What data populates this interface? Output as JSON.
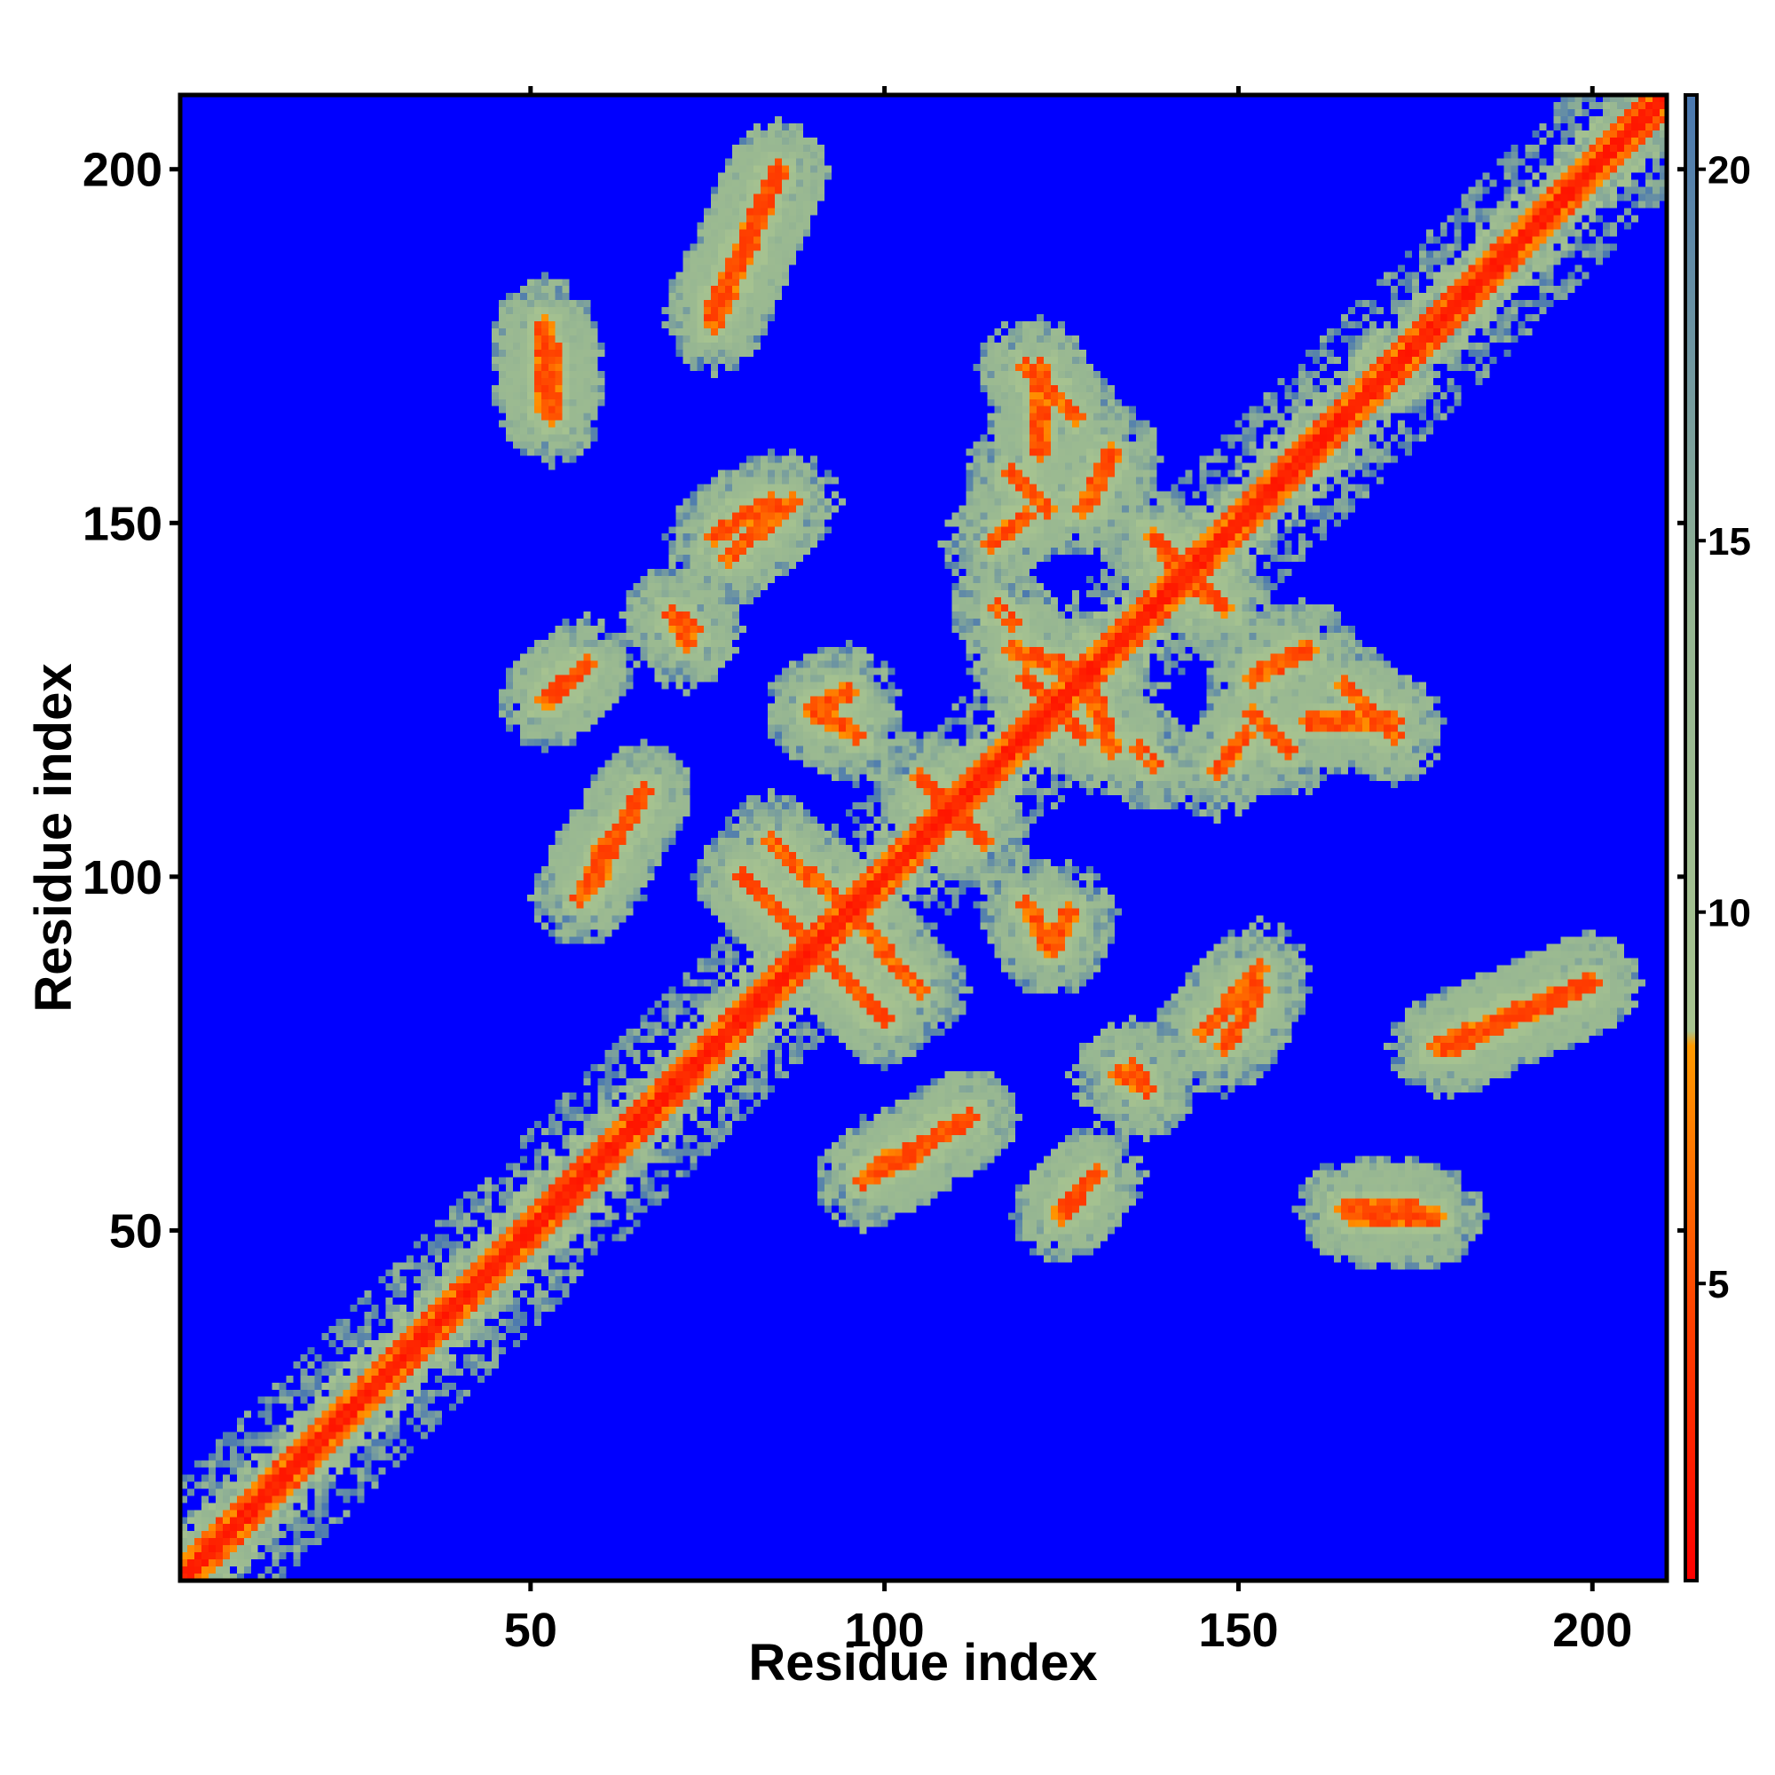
{
  "chart_data": {
    "type": "heatmap",
    "title": "",
    "xlabel": "Residue index",
    "ylabel": "Residue index",
    "n_residues": 210,
    "xlim": [
      1,
      210
    ],
    "ylim": [
      1,
      210
    ],
    "x_ticks": [
      50,
      100,
      150,
      200
    ],
    "y_ticks": [
      50,
      100,
      150,
      200
    ],
    "colorbar": {
      "ticks": [
        5,
        10,
        15,
        20
      ],
      "range": [
        1,
        21
      ],
      "colors": {
        "very_close": "#ff0000",
        "close": "#ff8c00",
        "medium": "#9fbf8f",
        "far": "#5f8fb0",
        "background": "#0000ff"
      },
      "stops": [
        {
          "value": 1,
          "color": "#ff0000"
        },
        {
          "value": 4.5,
          "color": "#ff4000"
        },
        {
          "value": 8.2,
          "color": "#ff9a00"
        },
        {
          "value": 8.4,
          "color": "#a8c490"
        },
        {
          "value": 14,
          "color": "#95b592"
        },
        {
          "value": 21,
          "color": "#4a78b0"
        }
      ]
    },
    "diagonal_band": {
      "strong_width": 2,
      "medium_width": 6,
      "outer_width": 12
    },
    "contact_segments": [
      {
        "from": [
          4,
          4
        ],
        "to": [
          210,
          210
        ],
        "kind": "diagonal"
      },
      {
        "from": [
          85,
          200
        ],
        "to": [
          76,
          180
        ],
        "kind": "parallel"
      },
      {
        "from": [
          84,
          153
        ],
        "to": [
          76,
          148
        ],
        "kind": "parallel"
      },
      {
        "from": [
          52,
          178
        ],
        "to": [
          52,
          166
        ],
        "kind": "patch"
      },
      {
        "from": [
          70,
          137
        ],
        "to": [
          72,
          133
        ],
        "kind": "patch"
      },
      {
        "from": [
          52,
          125
        ],
        "to": [
          57,
          129
        ],
        "kind": "antiparallel"
      },
      {
        "from": [
          60,
          100
        ],
        "to": [
          60,
          104
        ],
        "kind": "patch"
      },
      {
        "from": [
          66,
          112
        ],
        "to": [
          66,
          112
        ],
        "kind": "patch"
      },
      {
        "from": [
          105,
          114
        ],
        "to": [
          112,
          107
        ],
        "kind": "antiparallel"
      },
      {
        "from": [
          95,
          95
        ],
        "to": [
          105,
          84
        ],
        "kind": "antiparallel"
      },
      {
        "from": [
          120,
          151
        ],
        "to": [
          115,
          147
        ],
        "kind": "antiparallel"
      },
      {
        "from": [
          122,
          172
        ],
        "to": [
          122,
          160
        ],
        "kind": "patch"
      },
      {
        "from": [
          118,
          136
        ],
        "to": [
          118,
          136
        ],
        "kind": "patch"
      },
      {
        "from": [
          120,
          128
        ],
        "to": [
          128,
          120
        ],
        "kind": "antiparallel"
      },
      {
        "from": [
          128,
          130
        ],
        "to": [
          132,
          118
        ],
        "kind": "antiparallel"
      },
      {
        "from": [
          140,
          145
        ],
        "to": [
          148,
          138
        ],
        "kind": "antiparallel"
      },
      {
        "from": [
          138,
          116
        ],
        "to": [
          138,
          116
        ],
        "kind": "patch"
      },
      {
        "from": [
          152,
          123
        ],
        "to": [
          157,
          118
        ],
        "kind": "antiparallel"
      },
      {
        "from": [
          165,
          127
        ],
        "to": [
          172,
          120
        ],
        "kind": "antiparallel"
      },
      {
        "from": [
          145,
          78
        ],
        "to": [
          153,
          87
        ],
        "kind": "parallel"
      },
      {
        "from": [
          135,
          73
        ],
        "to": [
          137,
          70
        ],
        "kind": "patch"
      },
      {
        "from": [
          120,
          96
        ],
        "to": [
          123,
          90
        ],
        "kind": "antiparallel"
      },
      {
        "from": [
          97,
          57
        ],
        "to": [
          112,
          66
        ],
        "kind": "parallel"
      },
      {
        "from": [
          125,
          53
        ],
        "to": [
          130,
          58
        ],
        "kind": "parallel"
      },
      {
        "from": [
          165,
          53
        ],
        "to": [
          175,
          53
        ],
        "kind": "patch"
      },
      {
        "from": [
          178,
          76
        ],
        "to": [
          200,
          85
        ],
        "kind": "parallel"
      },
      {
        "from": [
          90,
          124
        ],
        "to": [
          95,
          126
        ],
        "kind": "patch"
      },
      {
        "from": [
          152,
          128
        ],
        "to": [
          160,
          132
        ],
        "kind": "patch"
      },
      {
        "from": [
          156,
          156
        ],
        "to": [
          180,
          180
        ],
        "kind": "diagonal"
      },
      {
        "from": [
          80,
          100
        ],
        "to": [
          100,
          80
        ],
        "kind": "antiparallel"
      }
    ],
    "grid": false,
    "legend": "none"
  }
}
